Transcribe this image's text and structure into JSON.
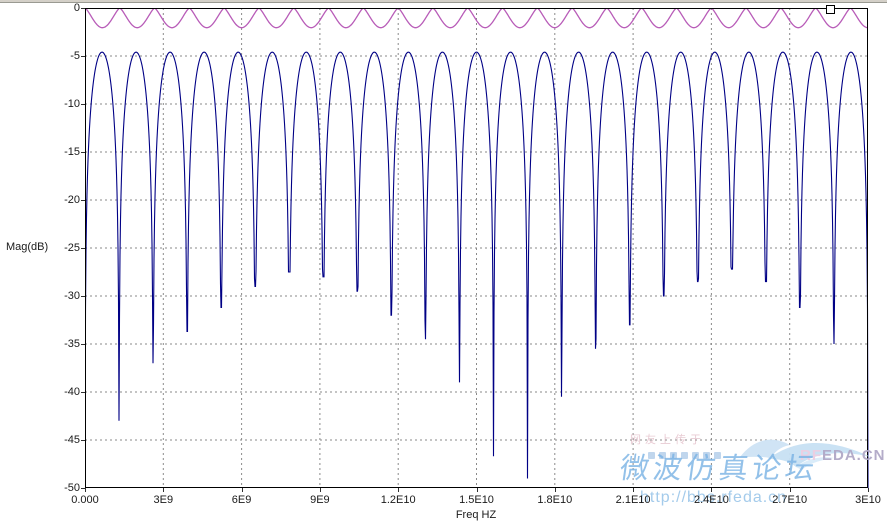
{
  "chart_data": {
    "type": "line",
    "title": "",
    "xlabel": "Freq HZ",
    "ylabel": "Mag(dB)",
    "xlim_hz": [
      0,
      30000000000
    ],
    "ylim_db": [
      -50,
      0
    ],
    "grid": "dashed-gray",
    "legend": "none",
    "x_ticks": [
      "0.000",
      "3E9",
      "6E9",
      "9E9",
      "1.2E10",
      "1.5E10",
      "1.8E10",
      "2.1E10",
      "2.4E10",
      "2.7E10",
      "3E10"
    ],
    "y_ticks": [
      "0",
      "-5",
      "-10",
      "-15",
      "-20",
      "-25",
      "-30",
      "-35",
      "-40",
      "-45",
      "-50"
    ],
    "series": [
      {
        "name": "comb-response-blue",
        "color": "#000085",
        "description": "periodic sinc-like lobes, rounded tops near -4.6 dB with sharp nulls every ~1.304 GHz, null depths vary in a beating pattern",
        "lobe_peak_db": -4.6,
        "null_spacing_ghz": 1.3043,
        "null_freqs_ghz": [
          0,
          1.304,
          2.609,
          3.913,
          5.217,
          6.522,
          7.826,
          9.13,
          10.435,
          11.739,
          13.043,
          14.348,
          15.652,
          16.957,
          18.261,
          19.565,
          20.87,
          22.174,
          23.478,
          24.783,
          26.087,
          27.391,
          28.696,
          30.0
        ],
        "null_depths_db": [
          -50,
          -43,
          -37,
          -33.7,
          -31.2,
          -29,
          -27.5,
          -28,
          -29.5,
          -32,
          -34.5,
          -39,
          -46.7,
          -49.8,
          -40.5,
          -35.5,
          -33,
          -30,
          -28.5,
          -27.2,
          -28.5,
          -31.2,
          -35,
          -50
        ]
      },
      {
        "name": "ripple-trace-magenta",
        "color": "#B85CB8",
        "description": "scalloped ripple touching 0 dB with dips of about -2 dB every ~1.333 GHz",
        "max_db": 0,
        "dip_depth_db": -2.05,
        "dip_period_ghz": 1.333,
        "shape_exponent": 1.35
      }
    ]
  },
  "watermark": {
    "faint_note": "网友上传于",
    "forum_name": "微波仿真论坛",
    "url": "http://bbs.rfeda.cn",
    "brand_rf": "RF",
    "brand_rest": "EDA.CN"
  }
}
